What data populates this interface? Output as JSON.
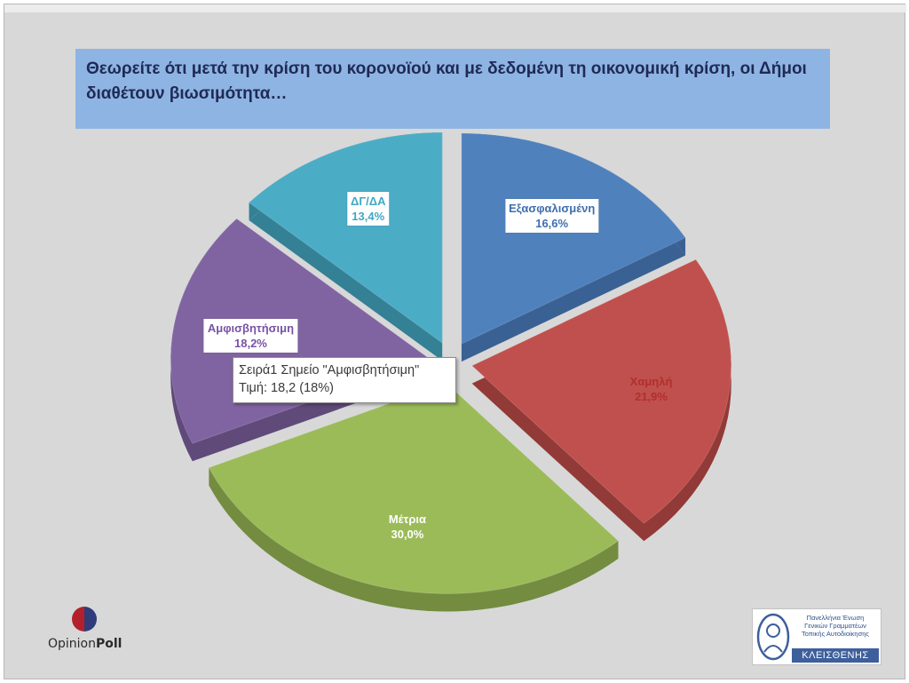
{
  "title": "Θεωρείτε  ότι μετά την κρίση του κορονοϊού και με δεδομένη τη οικονομική κρίση, οι Δήμοι διαθέτουν  βιωσιμότητα…",
  "chart_data": {
    "type": "pie",
    "title": "Θεωρείτε  ότι μετά την κρίση του κορονοϊού και με δεδομένη τη οικονομική κρίση, οι Δήμοι διαθέτουν  βιωσιμότητα…",
    "exploded": true,
    "three_d": true,
    "slices": [
      {
        "label": "Εξασφαλισμένη",
        "value": 16.6,
        "value_label": "16,6%",
        "color": "#4f81bd",
        "side": "#3a6193",
        "text_color": "#3f6fae",
        "boxed": true
      },
      {
        "label": "Χαμηλή",
        "value": 21.9,
        "value_label": "21,9%",
        "color": "#c0504d",
        "side": "#923a37",
        "text_color": "#b0302c",
        "boxed": false
      },
      {
        "label": "Μέτρια",
        "value": 30.0,
        "value_label": "30,0%",
        "color": "#9bbb59",
        "side": "#738c40",
        "text_color": "#ffffff",
        "boxed": false
      },
      {
        "label": "Αμφισβητήσιμη",
        "value": 18.2,
        "value_label": "18,2%",
        "color": "#8064a2",
        "side": "#5f4a79",
        "text_color": "#7a52a6",
        "boxed": true
      },
      {
        "label": "ΔΓ/ΔΑ",
        "value": 13.4,
        "value_label": "13,4%",
        "color": "#4bacc6",
        "side": "#348095",
        "text_color": "#3fa8c6",
        "boxed": true
      }
    ]
  },
  "tooltip": {
    "line1": "Σειρά1 Σημείο \"Αμφισβητήσιμη\"",
    "line2": "Τιμή: 18,2 (18%)"
  },
  "logos": {
    "opinionpoll": {
      "part1": "Opinion",
      "part2": "Poll"
    },
    "kleisthenis": {
      "org_line1": "Πανελλήνια Ένωση",
      "org_line2": "Γενικών Γραμματέων",
      "org_line3": "Τοπικής Αυτοδιοίκησης",
      "name": "ΚΛΕΙΣΘΕΝΗΣ"
    }
  }
}
